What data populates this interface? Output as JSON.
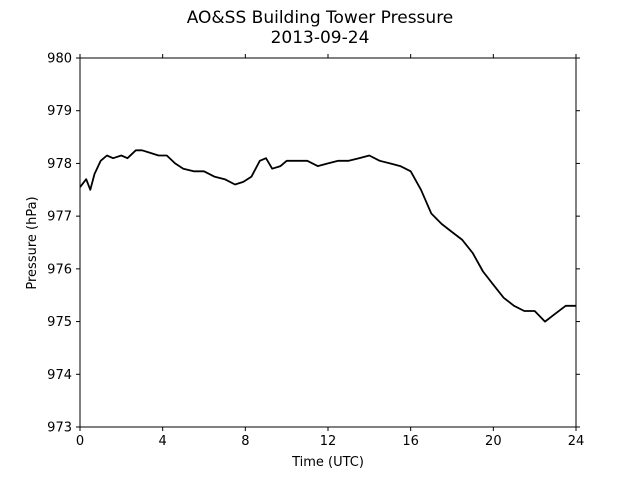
{
  "title": "AO&SS Building Tower Pressure",
  "subtitle": "2013-09-24",
  "chart_data": {
    "type": "line",
    "title": "AO&SS Building Tower Pressure",
    "subtitle": "2013-09-24",
    "xlabel": "Time (UTC)",
    "ylabel": "Pressure (hPa)",
    "xlim": [
      0,
      24
    ],
    "ylim": [
      973,
      980
    ],
    "xticks": [
      0,
      4,
      8,
      12,
      16,
      20,
      24
    ],
    "yticks": [
      973,
      974,
      975,
      976,
      977,
      978,
      979,
      980
    ],
    "grid": false,
    "line_color": "#000000",
    "series": [
      {
        "x": [
          0,
          0.3,
          0.5,
          0.7,
          1.0,
          1.3,
          1.6,
          2.0,
          2.3,
          2.7,
          3.0,
          3.4,
          3.8,
          4.2,
          4.6,
          5.0,
          5.5,
          6.0,
          6.5,
          7.0,
          7.5,
          7.9,
          8.3,
          8.7,
          9.0,
          9.3,
          9.7,
          10.0,
          10.5,
          11.0,
          11.5,
          12.0,
          12.5,
          13.0,
          13.5,
          14.0,
          14.5,
          15.0,
          15.5,
          16.0,
          16.5,
          17.0,
          17.5,
          18.0,
          18.5,
          19.0,
          19.5,
          20.0,
          20.5,
          21.0,
          21.5,
          22.0,
          22.5,
          23.0,
          23.5,
          24.0
        ],
        "y": [
          977.55,
          977.7,
          977.5,
          977.8,
          978.05,
          978.15,
          978.1,
          978.15,
          978.1,
          978.25,
          978.25,
          978.2,
          978.15,
          978.15,
          978.0,
          977.9,
          977.85,
          977.85,
          977.75,
          977.7,
          977.6,
          977.65,
          977.75,
          978.05,
          978.1,
          977.9,
          977.95,
          978.05,
          978.05,
          978.05,
          977.95,
          978.0,
          978.05,
          978.05,
          978.1,
          978.15,
          978.05,
          978.0,
          977.95,
          977.85,
          977.5,
          977.05,
          976.85,
          976.7,
          976.55,
          976.3,
          975.95,
          975.7,
          975.45,
          975.3,
          975.2,
          975.2,
          975.0,
          975.15,
          975.3,
          975.3
        ]
      }
    ]
  }
}
